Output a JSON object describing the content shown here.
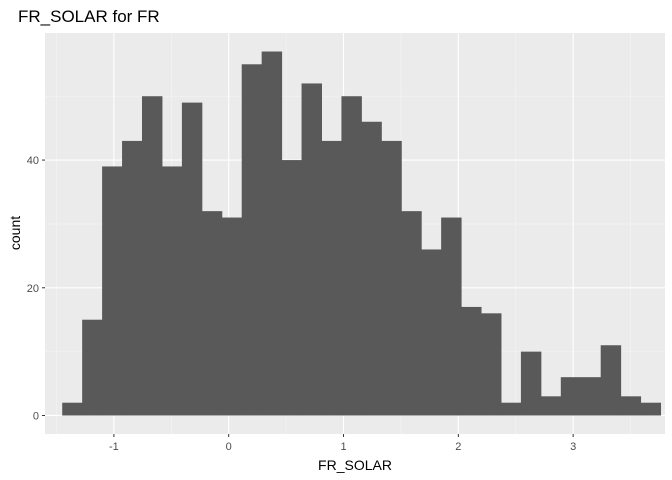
{
  "chart_data": {
    "type": "bar",
    "title": "FR_SOLAR  for FR",
    "xlabel": "FR_SOLAR",
    "ylabel": "count",
    "x_ticks": [
      -1,
      0,
      1,
      2,
      3
    ],
    "y_ticks": [
      0,
      20,
      40
    ],
    "xlim": [
      -1.6,
      3.8
    ],
    "ylim": [
      -2.9,
      59.9
    ],
    "bins": {
      "first_left": -1.45,
      "width": 0.1737,
      "values": [
        2,
        15,
        39,
        43,
        50,
        39,
        49,
        32,
        31,
        55,
        57,
        40,
        52,
        43,
        50,
        46,
        43,
        32,
        26,
        31,
        17,
        16,
        2,
        10,
        3,
        6,
        6,
        11,
        3,
        2
      ]
    },
    "grid": true,
    "legend": "none",
    "colors": {
      "panel": "#ebebeb",
      "grid_major": "#ffffff",
      "grid_minor": "#f5f5f5",
      "bar": "#595959",
      "tick": "#333333"
    }
  }
}
